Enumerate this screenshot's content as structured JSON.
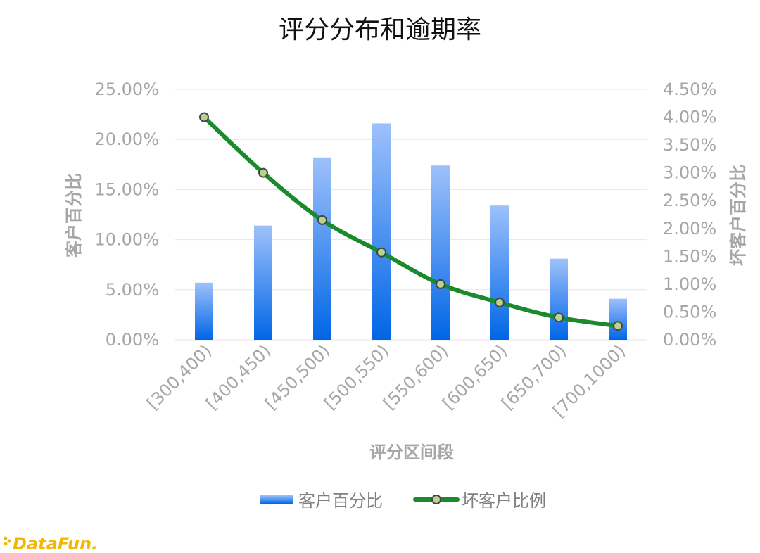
{
  "chart_data": {
    "type": "bar+line",
    "title": "评分分布和逾期率",
    "xlabel": "评分区间段",
    "ylabel_left": "客户百分比",
    "ylabel_right": "坏客户百分比",
    "categories": [
      "[300,400)",
      "[400,450)",
      "[450,500)",
      "[500,550)",
      "[550,600)",
      "[600,650)",
      "[650,700)",
      "[700,1000)"
    ],
    "left_axis": {
      "min": 0,
      "max": 25,
      "ticks": [
        "0.00%",
        "5.00%",
        "10.00%",
        "15.00%",
        "20.00%",
        "25.00%"
      ]
    },
    "right_axis": {
      "min": 0,
      "max": 4.5,
      "ticks": [
        "0.00%",
        "0.50%",
        "1.00%",
        "1.50%",
        "2.00%",
        "2.50%",
        "3.00%",
        "3.50%",
        "4.00%",
        "4.50%"
      ]
    },
    "series": [
      {
        "name": "客户百分比",
        "type": "bar",
        "axis": "left",
        "values": [
          5.7,
          11.4,
          18.2,
          21.6,
          17.4,
          13.4,
          8.1,
          4.1
        ]
      },
      {
        "name": "坏客户比例",
        "type": "line",
        "axis": "right",
        "values": [
          4.0,
          3.0,
          2.15,
          1.57,
          1.0,
          0.67,
          0.4,
          0.25
        ]
      }
    ],
    "grid": true,
    "legend": "bottom"
  },
  "colors": {
    "bar_top": "#9ec1fb",
    "bar_bottom": "#0066e6",
    "line": "#1a8a2c",
    "marker_fill": "#b7d38d",
    "marker_stroke": "#444444",
    "tick_text": "#a6a6a6",
    "title_text": "#111111"
  },
  "branding": {
    "logo_text": "DataFun."
  }
}
